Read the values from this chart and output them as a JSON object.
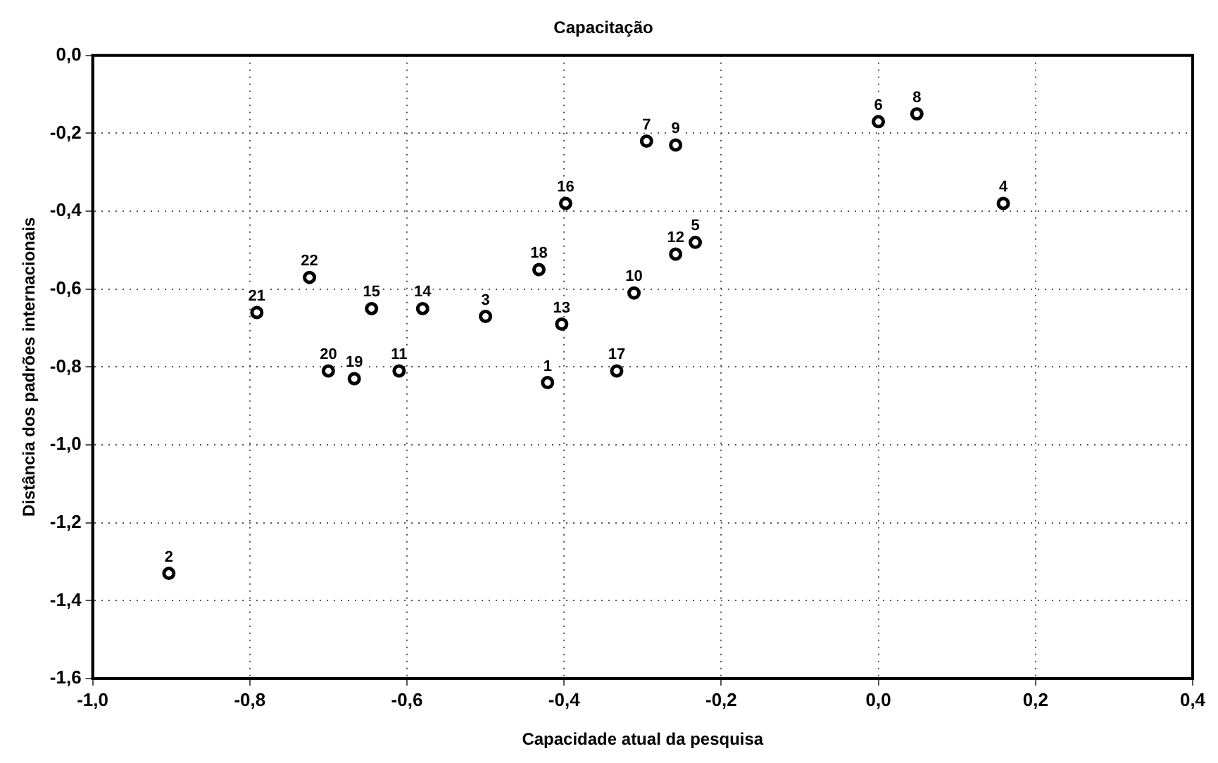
{
  "chart_data": {
    "type": "scatter",
    "title": "Capacitação",
    "xlabel": "Capacidade atual da pesquisa",
    "ylabel": "Distância dos padrões internacionais",
    "x": [
      -0.421,
      -0.903,
      -0.5,
      0.159,
      -0.233,
      0.0,
      -0.295,
      0.049,
      -0.258,
      -0.311,
      -0.61,
      -0.258,
      -0.403,
      -0.58,
      -0.645,
      -0.398,
      -0.333,
      -0.432,
      -0.667,
      -0.7,
      -0.791,
      -0.724
    ],
    "series": [
      {
        "color": "#000000",
        "values": [
          -0.84,
          -1.33,
          -0.67,
          -0.38,
          -0.48,
          -0.17,
          -0.22,
          -0.15,
          -0.23,
          -0.61,
          -0.81,
          -0.51,
          -0.69,
          -0.65,
          -0.65,
          -0.38,
          -0.81,
          -0.55,
          -0.83,
          -0.81,
          -0.66,
          -0.57
        ]
      }
    ],
    "annotations": [
      {
        "text": "1",
        "x": -0.421,
        "y": -0.84
      },
      {
        "text": "2",
        "x": -0.903,
        "y": -1.33
      },
      {
        "text": "3",
        "x": -0.5,
        "y": -0.67
      },
      {
        "text": "4",
        "x": 0.159,
        "y": -0.38
      },
      {
        "text": "5",
        "x": -0.233,
        "y": -0.48
      },
      {
        "text": "6",
        "x": 0.0,
        "y": -0.17
      },
      {
        "text": "7",
        "x": -0.295,
        "y": -0.22
      },
      {
        "text": "8",
        "x": 0.049,
        "y": -0.15
      },
      {
        "text": "9",
        "x": -0.258,
        "y": -0.23
      },
      {
        "text": "10",
        "x": -0.311,
        "y": -0.61
      },
      {
        "text": "11",
        "x": -0.61,
        "y": -0.81
      },
      {
        "text": "12",
        "x": -0.258,
        "y": -0.51
      },
      {
        "text": "13",
        "x": -0.403,
        "y": -0.69
      },
      {
        "text": "14",
        "x": -0.58,
        "y": -0.65
      },
      {
        "text": "15",
        "x": -0.645,
        "y": -0.65
      },
      {
        "text": "16",
        "x": -0.398,
        "y": -0.38
      },
      {
        "text": "17",
        "x": -0.333,
        "y": -0.81
      },
      {
        "text": "18",
        "x": -0.432,
        "y": -0.55
      },
      {
        "text": "19",
        "x": -0.667,
        "y": -0.83
      },
      {
        "text": "20",
        "x": -0.7,
        "y": -0.81
      },
      {
        "text": "21",
        "x": -0.791,
        "y": -0.66
      },
      {
        "text": "22",
        "x": -0.724,
        "y": -0.57
      }
    ],
    "xlim": [
      -1.0,
      0.4
    ],
    "ylim": [
      -1.6,
      0.0
    ],
    "xticks": [
      {
        "value": -1.0,
        "label": "-1,0"
      },
      {
        "value": -0.8,
        "label": "-0,8"
      },
      {
        "value": -0.6,
        "label": "-0,6"
      },
      {
        "value": -0.4,
        "label": "-0,4"
      },
      {
        "value": -0.2,
        "label": "-0,2"
      },
      {
        "value": 0.0,
        "label": "0,0"
      },
      {
        "value": 0.2,
        "label": "0,2"
      },
      {
        "value": 0.4,
        "label": "0,4"
      }
    ],
    "yticks": [
      {
        "value": -1.6,
        "label": "-1,6"
      },
      {
        "value": -1.4,
        "label": "-1,4"
      },
      {
        "value": -1.2,
        "label": "-1,2"
      },
      {
        "value": -1.0,
        "label": "-1,0"
      },
      {
        "value": -0.8,
        "label": "-0,8"
      },
      {
        "value": -0.6,
        "label": "-0,6"
      },
      {
        "value": -0.4,
        "label": "-0,4"
      },
      {
        "value": -0.2,
        "label": "-0,2"
      },
      {
        "value": 0.0,
        "label": "0,0"
      }
    ],
    "grid": true,
    "marker": "circle",
    "legend": false
  }
}
